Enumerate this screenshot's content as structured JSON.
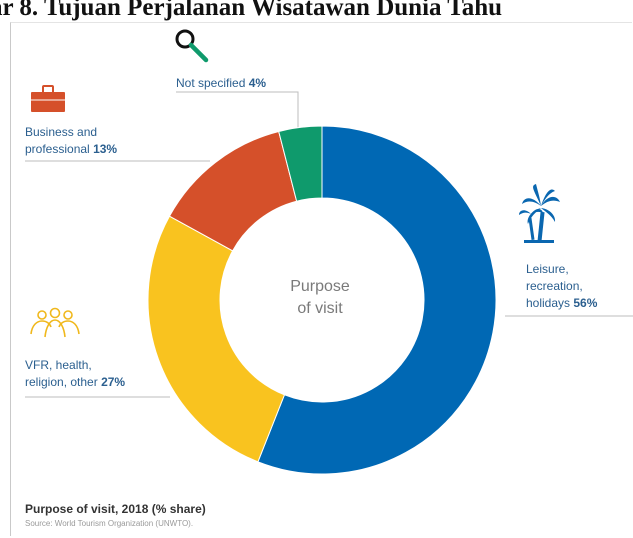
{
  "page_header": "ar 8. Tujuan Perjalanan Wisatawan Dunia Tahu",
  "chart_data": {
    "type": "pie",
    "title": "Purpose of visit, 2018 (% share)",
    "center_label": [
      "Purpose",
      "of visit"
    ],
    "source": "Source: World Tourism Organization (UNWTO).",
    "slices": [
      {
        "label": "Leisure, recreation, holidays",
        "label_lines": [
          "Leisure,",
          "recreation,",
          "holidays"
        ],
        "value": 56,
        "value_text": "56%",
        "color": "#0068b4",
        "icon": "palm-tree-icon"
      },
      {
        "label": "VFR, health, religion, other",
        "label_lines": [
          "VFR, health,",
          "religion, other"
        ],
        "value": 27,
        "value_text": "27%",
        "color": "#f9c31f",
        "icon": "people-group-icon"
      },
      {
        "label": "Business and professional",
        "label_lines": [
          "Business and",
          "professional"
        ],
        "value": 13,
        "value_text": "13%",
        "color": "#d5502a",
        "icon": "briefcase-icon"
      },
      {
        "label": "Not specified",
        "label_lines": [
          "Not specified"
        ],
        "value": 4,
        "value_text": "4%",
        "color": "#0f9a6c",
        "icon": "magnifier-icon"
      }
    ]
  }
}
